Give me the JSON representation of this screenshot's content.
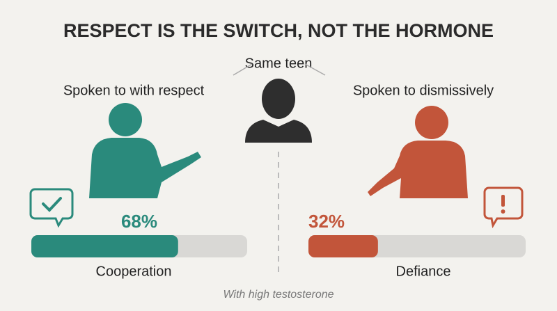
{
  "chart_data": {
    "type": "bar",
    "title": "RESPECT IS THE SWITCH, NOT THE HORMONE",
    "annotations": {
      "center": "Same teen",
      "footnote": "With high testosterone"
    },
    "captions": [
      "Spoken to with respect",
      "Spoken to dismissively"
    ],
    "categories": [
      "Cooperation",
      "Defiance"
    ],
    "values": [
      68,
      32
    ],
    "value_labels": [
      "68%",
      "32%"
    ],
    "colors": [
      "#2a8a7c",
      "#c2553a"
    ],
    "xlim": [
      0,
      100
    ]
  }
}
